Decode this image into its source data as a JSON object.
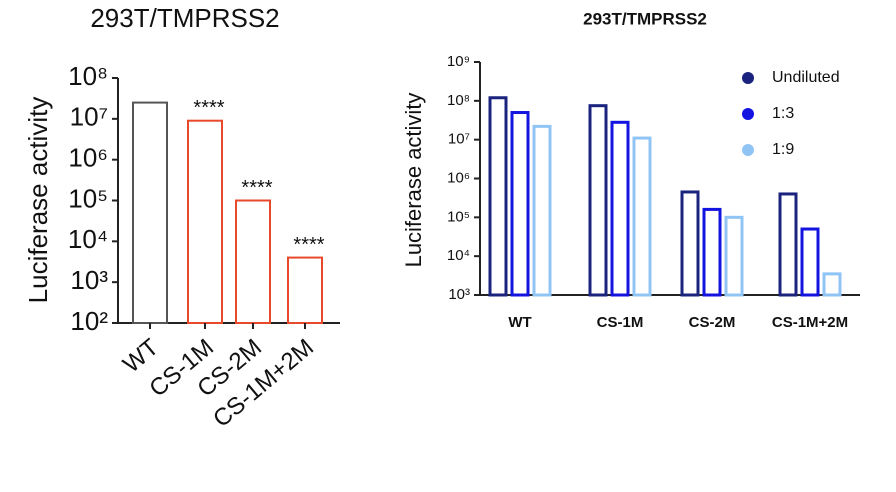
{
  "chart_data": [
    {
      "type": "bar",
      "title": "293T/TMPRSS2",
      "y_label": "Luciferase activity",
      "log_scale": true,
      "categories": [
        "WT",
        "CS-1M",
        "CS-2M",
        "CS-1M+2M"
      ],
      "values": [
        25000000,
        9000000,
        100000,
        4000
      ],
      "colors": [
        "#555555",
        "#e8492a",
        "#e8492a",
        "#e8492a"
      ],
      "annotations": [
        null,
        "****",
        "****",
        "****"
      ],
      "ylim": [
        100,
        100000000
      ],
      "yticks": [
        {
          "value": 100,
          "label": "10²"
        },
        {
          "value": 1000,
          "label": "10³"
        },
        {
          "value": 10000,
          "label": "10⁴"
        },
        {
          "value": 100000,
          "label": "10⁵"
        },
        {
          "value": 1000000,
          "label": "10⁶"
        },
        {
          "value": 10000000,
          "label": "10⁷"
        },
        {
          "value": 100000000,
          "label": "10⁸"
        }
      ]
    },
    {
      "type": "grouped_bar",
      "title": "293T/TMPRSS2",
      "y_label": "Luciferase activity",
      "log_scale": true,
      "legend": "top-right",
      "categories": [
        "WT",
        "CS-1M",
        "CS-2M",
        "CS-1M+2M"
      ],
      "series": [
        {
          "name": "Undiluted",
          "color": "#1a237e",
          "values": [
            120000000,
            75000000,
            450000,
            400000
          ]
        },
        {
          "name": "1:3",
          "color": "#1414e0",
          "values": [
            50000000,
            28000000,
            160000,
            50000
          ]
        },
        {
          "name": "1:9",
          "color": "#90c4f5",
          "values": [
            22000000,
            11000000,
            100000,
            3500
          ]
        }
      ],
      "ylim": [
        1000,
        1000000000
      ],
      "yticks": [
        {
          "value": 1000,
          "label": "10³"
        },
        {
          "value": 10000,
          "label": "10⁴"
        },
        {
          "value": 100000,
          "label": "10⁵"
        },
        {
          "value": 1000000,
          "label": "10⁶"
        },
        {
          "value": 10000000,
          "label": "10⁷"
        },
        {
          "value": 100000000,
          "label": "10⁸"
        },
        {
          "value": 1000000000,
          "label": "10⁹"
        }
      ]
    }
  ]
}
